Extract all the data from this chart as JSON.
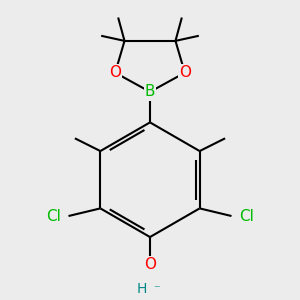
{
  "background_color": "#ececec",
  "line_color": "#000000",
  "bond_lw": 1.5,
  "atom_colors": {
    "O": "#ff0000",
    "B": "#00bb00",
    "Cl": "#00bb00",
    "H": "#008888",
    "C": "#000000"
  },
  "figsize": [
    3.0,
    3.0
  ],
  "dpi": 100
}
